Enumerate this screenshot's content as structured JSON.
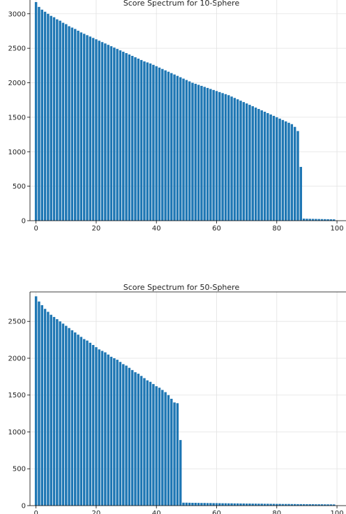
{
  "chart_data": [
    {
      "type": "bar",
      "title": "Score Spectrum for 10-Sphere",
      "xlabel": "",
      "ylabel": "",
      "color": "#1f77b4",
      "grid": true,
      "xlim": [
        -2,
        103
      ],
      "ylim": [
        0,
        3200
      ],
      "xticks": [
        0,
        20,
        40,
        60,
        80,
        100
      ],
      "xtick_labels": [
        "0",
        "20",
        "40",
        "60",
        "80",
        "100"
      ],
      "yticks": [
        0,
        500,
        1000,
        1500,
        2000,
        2500,
        3000
      ],
      "ytick_labels": [
        "0",
        "500",
        "1000",
        "1500",
        "2000",
        "2500",
        "3000"
      ],
      "x": [
        0,
        1,
        2,
        3,
        4,
        5,
        6,
        7,
        8,
        9,
        10,
        11,
        12,
        13,
        14,
        15,
        16,
        17,
        18,
        19,
        20,
        21,
        22,
        23,
        24,
        25,
        26,
        27,
        28,
        29,
        30,
        31,
        32,
        33,
        34,
        35,
        36,
        37,
        38,
        39,
        40,
        41,
        42,
        43,
        44,
        45,
        46,
        47,
        48,
        49,
        50,
        51,
        52,
        53,
        54,
        55,
        56,
        57,
        58,
        59,
        60,
        61,
        62,
        63,
        64,
        65,
        66,
        67,
        68,
        69,
        70,
        71,
        72,
        73,
        74,
        75,
        76,
        77,
        78,
        79,
        80,
        81,
        82,
        83,
        84,
        85,
        86,
        87,
        88,
        89,
        90,
        91,
        92,
        93,
        94,
        95,
        96,
        97,
        98,
        99
      ],
      "values": [
        3170,
        3100,
        3060,
        3030,
        3000,
        2970,
        2950,
        2920,
        2900,
        2870,
        2850,
        2820,
        2800,
        2780,
        2755,
        2730,
        2710,
        2690,
        2670,
        2650,
        2630,
        2610,
        2590,
        2570,
        2550,
        2530,
        2510,
        2490,
        2470,
        2450,
        2430,
        2410,
        2390,
        2370,
        2350,
        2330,
        2310,
        2295,
        2280,
        2260,
        2240,
        2220,
        2200,
        2180,
        2160,
        2140,
        2120,
        2100,
        2080,
        2060,
        2040,
        2020,
        2000,
        1985,
        1970,
        1955,
        1940,
        1925,
        1910,
        1895,
        1880,
        1865,
        1850,
        1835,
        1820,
        1800,
        1780,
        1760,
        1740,
        1720,
        1700,
        1680,
        1660,
        1640,
        1620,
        1600,
        1580,
        1560,
        1540,
        1520,
        1500,
        1480,
        1460,
        1440,
        1420,
        1400,
        1360,
        1300,
        780,
        30,
        28,
        27,
        26,
        25,
        24,
        23,
        22,
        21,
        20,
        19
      ]
    },
    {
      "type": "bar",
      "title": "Score Spectrum for 50-Sphere",
      "xlabel": "",
      "ylabel": "",
      "color": "#1f77b4",
      "grid": true,
      "xlim": [
        -2,
        103
      ],
      "ylim": [
        0,
        2900
      ],
      "xticks": [
        0,
        20,
        40,
        60,
        80,
        100
      ],
      "xtick_labels": [
        "0",
        "20",
        "40",
        "60",
        "80",
        "100"
      ],
      "yticks": [
        0,
        500,
        1000,
        1500,
        2000,
        2500
      ],
      "ytick_labels": [
        "0",
        "500",
        "1000",
        "1500",
        "2000",
        "2500"
      ],
      "x": [
        0,
        1,
        2,
        3,
        4,
        5,
        6,
        7,
        8,
        9,
        10,
        11,
        12,
        13,
        14,
        15,
        16,
        17,
        18,
        19,
        20,
        21,
        22,
        23,
        24,
        25,
        26,
        27,
        28,
        29,
        30,
        31,
        32,
        33,
        34,
        35,
        36,
        37,
        38,
        39,
        40,
        41,
        42,
        43,
        44,
        45,
        46,
        47,
        48,
        49,
        50,
        51,
        52,
        53,
        54,
        55,
        56,
        57,
        58,
        59,
        60,
        61,
        62,
        63,
        64,
        65,
        66,
        67,
        68,
        69,
        70,
        71,
        72,
        73,
        74,
        75,
        76,
        77,
        78,
        79,
        80,
        81,
        82,
        83,
        84,
        85,
        86,
        87,
        88,
        89,
        90,
        91,
        92,
        93,
        94,
        95,
        96,
        97,
        98,
        99
      ],
      "values": [
        2840,
        2770,
        2720,
        2670,
        2630,
        2590,
        2560,
        2530,
        2500,
        2470,
        2440,
        2410,
        2380,
        2350,
        2320,
        2290,
        2260,
        2240,
        2210,
        2180,
        2150,
        2120,
        2100,
        2080,
        2050,
        2020,
        2000,
        1980,
        1950,
        1920,
        1900,
        1870,
        1840,
        1810,
        1790,
        1760,
        1730,
        1700,
        1680,
        1650,
        1620,
        1600,
        1570,
        1540,
        1500,
        1450,
        1400,
        1390,
        890,
        40,
        40,
        39,
        38,
        38,
        37,
        36,
        36,
        35,
        35,
        34,
        34,
        33,
        32,
        32,
        31,
        31,
        30,
        30,
        29,
        29,
        28,
        28,
        27,
        27,
        26,
        26,
        25,
        25,
        24,
        24,
        23,
        23,
        22,
        22,
        22,
        21,
        21,
        20,
        20,
        20,
        19,
        19,
        19,
        18,
        18,
        18,
        17,
        17,
        17,
        16
      ]
    }
  ]
}
